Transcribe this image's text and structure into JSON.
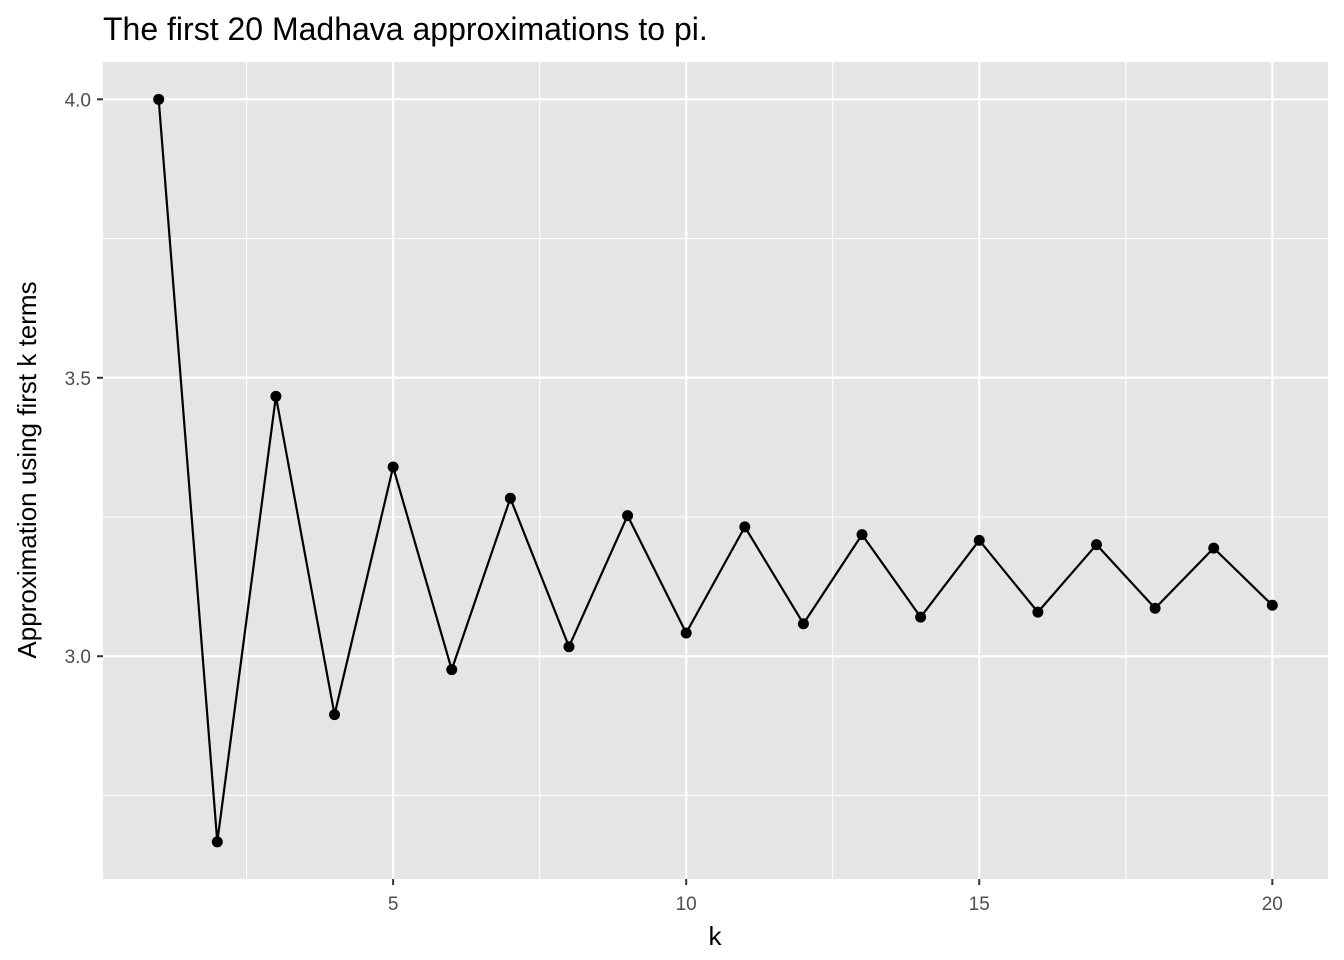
{
  "chart_data": {
    "type": "line",
    "title": "The first 20 Madhava approximations to pi.",
    "xlabel": "k",
    "ylabel": "Approximation using first k terms",
    "x": [
      1,
      2,
      3,
      4,
      5,
      6,
      7,
      8,
      9,
      10,
      11,
      12,
      13,
      14,
      15,
      16,
      17,
      18,
      19,
      20
    ],
    "series": [
      {
        "values": [
          4.0,
          2.6667,
          3.4667,
          2.8952,
          3.3397,
          2.976,
          3.2837,
          3.0171,
          3.2524,
          3.0418,
          3.2323,
          3.0584,
          3.2184,
          3.0703,
          3.2081,
          3.0792,
          3.2003,
          3.0861,
          3.1941,
          3.0916
        ],
        "color": "#000000",
        "markers": true
      }
    ],
    "xlim": [
      0.05,
      20.95
    ],
    "ylim": [
      2.6,
      4.067
    ],
    "x_ticks": [
      5,
      10,
      15,
      20
    ],
    "x_tick_labels": [
      "5",
      "10",
      "15",
      "20"
    ],
    "x_minor_ticks": [
      2.5,
      7.5,
      12.5,
      17.5
    ],
    "y_ticks": [
      3.0,
      3.5,
      4.0
    ],
    "y_tick_labels": [
      "3.0",
      "3.5",
      "4.0"
    ],
    "y_minor_ticks": [
      2.75,
      3.25,
      3.75
    ],
    "grid": true,
    "panel_color": "#e5e5e5",
    "grid_color": "#ffffff"
  }
}
